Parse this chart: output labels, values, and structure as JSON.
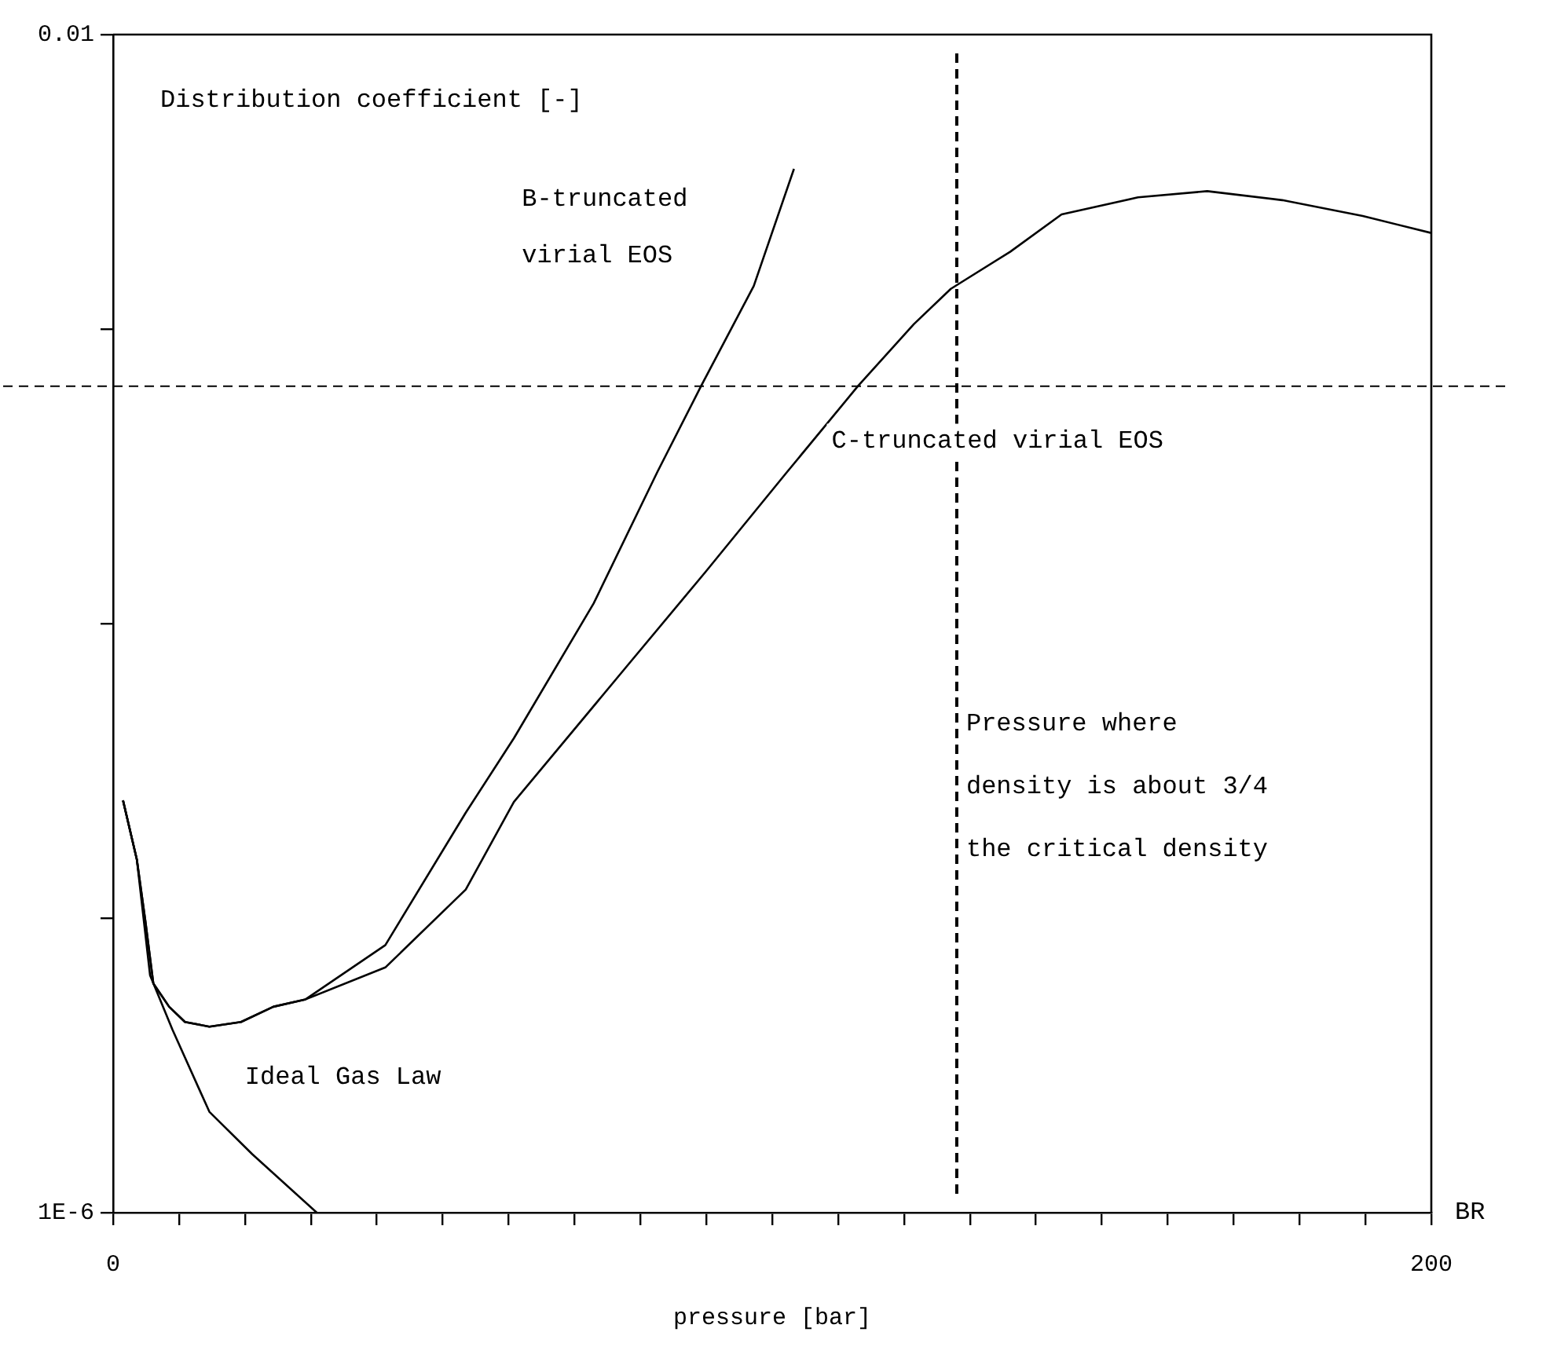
{
  "chart_data": {
    "type": "line",
    "xlabel": "pressure [bar]",
    "ylabel": "Distribution coefficient [-]",
    "log": "y",
    "xlim": [
      0,
      200
    ],
    "ylim": [
      1e-06,
      0.01
    ],
    "xticks": [
      {
        "value": 0,
        "label": "0"
      },
      {
        "value": 10,
        "label": null
      },
      {
        "value": 20,
        "label": null
      },
      {
        "value": 30,
        "label": null
      },
      {
        "value": 40,
        "label": null
      },
      {
        "value": 50,
        "label": null
      },
      {
        "value": 60,
        "label": null
      },
      {
        "value": 70,
        "label": null
      },
      {
        "value": 80,
        "label": null
      },
      {
        "value": 90,
        "label": null
      },
      {
        "value": 100,
        "label": null
      },
      {
        "value": 110,
        "label": null
      },
      {
        "value": 120,
        "label": null
      },
      {
        "value": 130,
        "label": null
      },
      {
        "value": 140,
        "label": null
      },
      {
        "value": 150,
        "label": null
      },
      {
        "value": 160,
        "label": null
      },
      {
        "value": 170,
        "label": null
      },
      {
        "value": 180,
        "label": null
      },
      {
        "value": 190,
        "label": null
      },
      {
        "value": 200,
        "label": "200"
      }
    ],
    "yticks": [
      {
        "value": 1e-06,
        "label": "1E-6"
      },
      {
        "value": 1e-05,
        "label": null
      },
      {
        "value": 0.0001,
        "label": null
      },
      {
        "value": 0.001,
        "label": null
      },
      {
        "value": 0.01,
        "label": "0.01"
      }
    ],
    "series": [
      {
        "name": "B-truncated virial EOS",
        "color": "#000000",
        "x": [
          1.5,
          3.6,
          4.9,
          6.1,
          8.5,
          10.9,
          14.6,
          19.4,
          24.3,
          29.2,
          41.3,
          53.5,
          60.8,
          72.9,
          82.6,
          89.2,
          97.2,
          103.3
        ],
        "values": [
          2.51e-05,
          1.58e-05,
          9.75e-06,
          6e-06,
          5e-06,
          4.44e-06,
          4.28e-06,
          4.44e-06,
          5e-06,
          5.3e-06,
          8.1e-06,
          2.28e-05,
          4.08e-05,
          0.000117,
          0.000328,
          0.00064,
          0.0014,
          0.0035
        ]
      },
      {
        "name": "C-truncated virial EOS",
        "color": "#000000",
        "x": [
          1.5,
          3.6,
          4.9,
          6.1,
          8.5,
          10.9,
          14.6,
          19.4,
          24.3,
          29.2,
          41.3,
          53.5,
          60.8,
          77.8,
          89.9,
          102.1,
          113,
          121.5,
          127.1,
          136.1,
          143.9,
          155.5,
          166,
          177.4,
          189.6,
          200
        ],
        "values": [
          2.51e-05,
          1.58e-05,
          9.75e-06,
          6e-06,
          5e-06,
          4.44e-06,
          4.28e-06,
          4.44e-06,
          5e-06,
          5.3e-06,
          6.8e-06,
          1.25e-05,
          2.48e-05,
          7.1e-05,
          0.00015,
          0.000324,
          0.00064,
          0.00104,
          0.00137,
          0.00183,
          0.00245,
          0.0028,
          0.00294,
          0.00274,
          0.00242,
          0.00212
        ]
      },
      {
        "name": "Ideal Gas Law",
        "color": "#000000",
        "x": [
          1.5,
          3.6,
          5.6,
          9,
          14.6,
          21.1,
          30.9
        ],
        "values": [
          2.51e-05,
          1.58e-05,
          6.4e-06,
          4.18e-06,
          2.2e-06,
          1.58e-06,
          1e-06
        ]
      }
    ],
    "ref_lines": [
      {
        "axis": "y",
        "value": 0.00064,
        "color": "#000000",
        "line_style": "dashed"
      },
      {
        "axis": "x",
        "value": 128,
        "label": "Pressure where density is about 3/4 the critical density",
        "color": "#000000",
        "line_style": "dashed"
      }
    ],
    "annotations": [
      "BR"
    ],
    "grid": false,
    "legend": false,
    "line_style": "solid",
    "marker": "none"
  }
}
